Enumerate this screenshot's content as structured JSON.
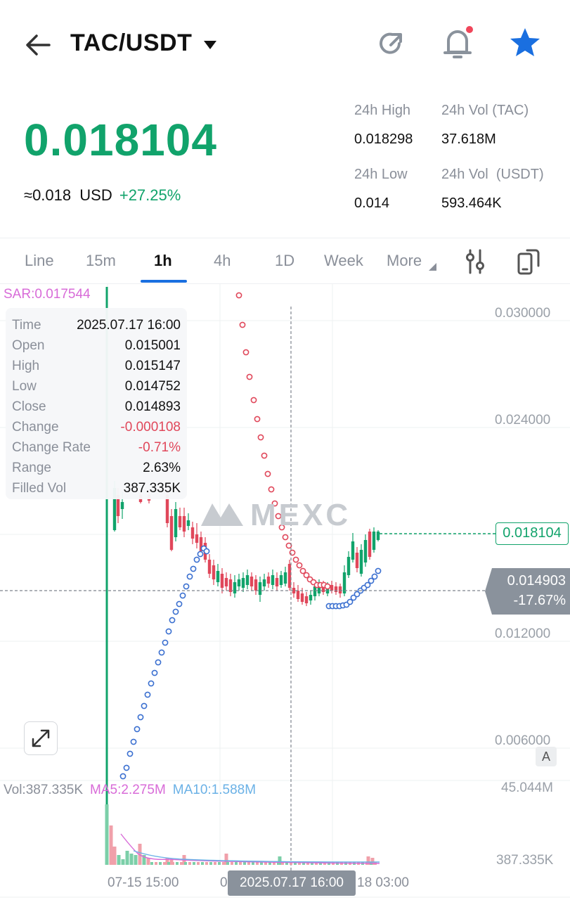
{
  "header": {
    "pair": "TAC/USDT",
    "icons": [
      "back-arrow-icon",
      "dropdown-caret-icon",
      "share-icon",
      "bell-icon",
      "star-icon"
    ],
    "colors": {
      "favorite": "#1a6fe0",
      "notification_dot": "#f0465a"
    }
  },
  "ticker": {
    "price": "0.018104",
    "usd_equiv": "≈0.018",
    "usd_unit": "USD",
    "change_pct": "+27.25%",
    "high_label": "24h High",
    "high_value": "0.018298",
    "vol_tac_label": "24h Vol (TAC)",
    "vol_tac_value": "37.618M",
    "low_label": "24h Low",
    "low_value": "0.014",
    "vol_usdt_label": "24h Vol  (USDT)",
    "vol_usdt_value": "593.464K",
    "colors": {
      "up": "#11a36b",
      "down": "#e0475a"
    }
  },
  "tabs": [
    {
      "label": "Line"
    },
    {
      "label": "15m"
    },
    {
      "label": "1h",
      "active": true
    },
    {
      "label": "4h"
    },
    {
      "label": "1D"
    },
    {
      "label": "Week"
    },
    {
      "label": "More"
    }
  ],
  "tools": [
    "indicator-settings-icon",
    "rotate-screen-icon"
  ],
  "indicator": {
    "sar_label": "SAR:0.017544"
  },
  "tooltip": {
    "rows": [
      {
        "k": "Time",
        "v": "2025.07.17 16:00"
      },
      {
        "k": "Open",
        "v": "0.015001"
      },
      {
        "k": "High",
        "v": "0.015147"
      },
      {
        "k": "Low",
        "v": "0.014752"
      },
      {
        "k": "Close",
        "v": "0.014893"
      },
      {
        "k": "Change",
        "v": "-0.000108",
        "neg": true
      },
      {
        "k": "Change Rate",
        "v": "-0.71%",
        "neg": true
      },
      {
        "k": "Range",
        "v": "2.63%"
      },
      {
        "k": "Filled Vol",
        "v": "387.335K"
      }
    ]
  },
  "price_axis": {
    "ticks": [
      "0.030000",
      "0.024000",
      "0.012000",
      "0.006000"
    ],
    "last_price": "0.018104",
    "crosshair_price": "0.014903",
    "crosshair_change": "-17.67%"
  },
  "watermark": "MEXC",
  "volume": {
    "vol": "Vol:387.335K",
    "ma5": "MA5:2.275M",
    "ma10": "MA10:1.588M",
    "max": "45.044M",
    "current": "387.335K"
  },
  "time_axis": {
    "left": "07-15 15:00",
    "left_partial": "0",
    "right": "18 03:00",
    "crosshair": "2025.07.17 16:00"
  },
  "auto_button": "A",
  "chart_data": {
    "type": "candlestick",
    "title": "",
    "interval": "1h",
    "ylim": [
      0.006,
      0.03
    ],
    "y_ticks": [
      0.006,
      0.012,
      0.024,
      0.03
    ],
    "last_price": 0.018104,
    "crosshair": {
      "time": "2025.07.17 16:00",
      "price": 0.014903
    },
    "grid": true
  }
}
